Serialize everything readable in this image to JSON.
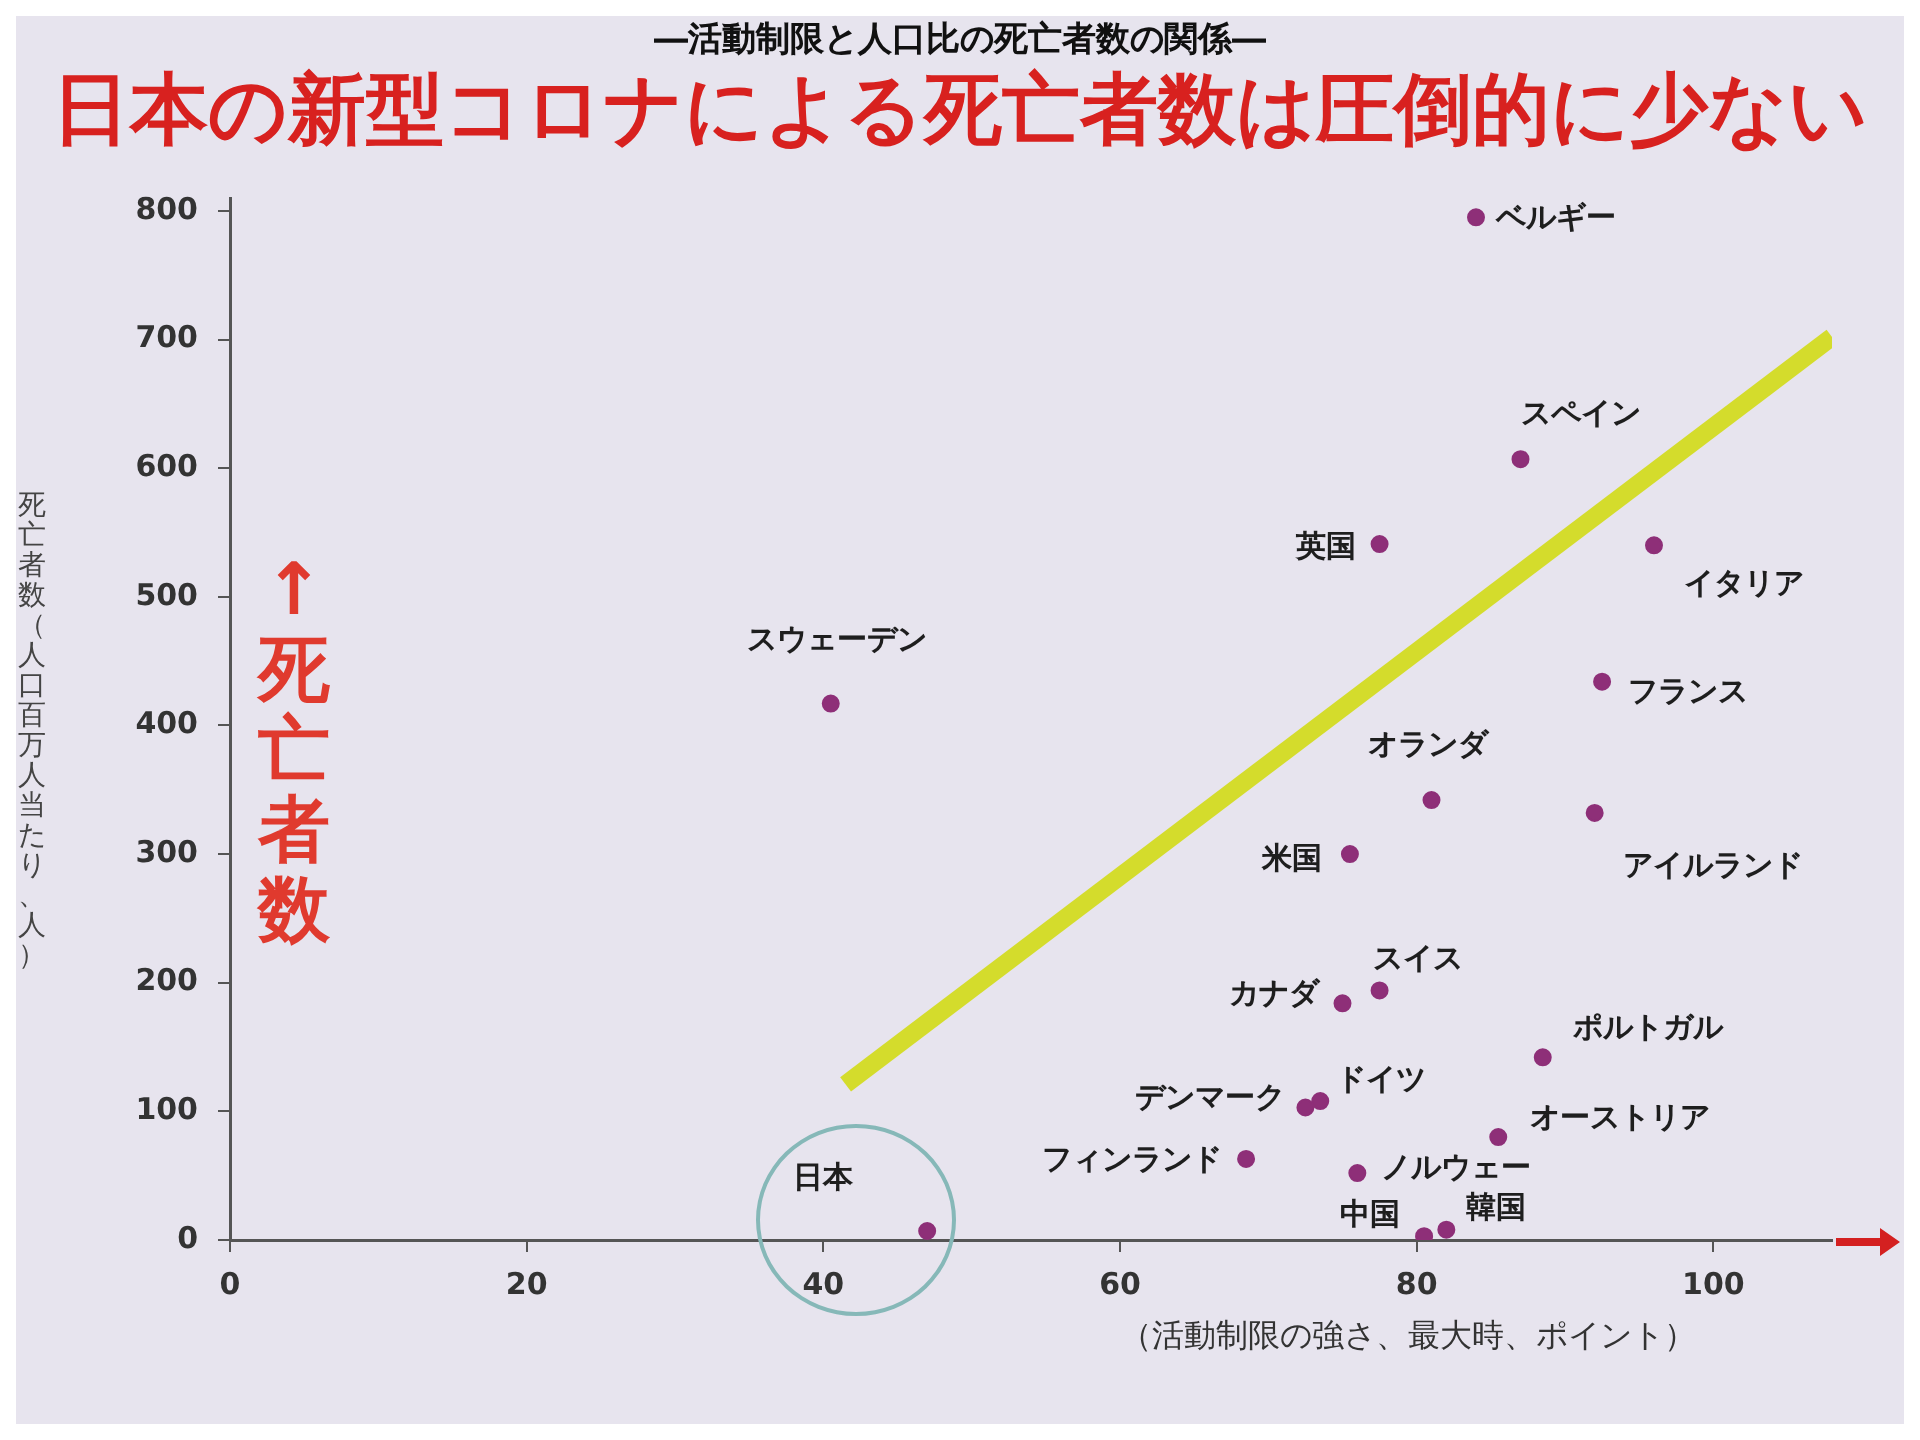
{
  "chart_data": {
    "type": "scatter",
    "title": "日本の新型コロナによる死亡者数は圧倒的に少ない",
    "subtitle": "―活動制限と人口比の死亡者数の関係―",
    "xlabel": "（活動制限の強さ、最大時、ポイント）",
    "ylabel": "死亡者数（人口百万人当たり、人）",
    "xlim": [
      0,
      108
    ],
    "xticks": [
      0,
      20,
      40,
      60,
      80,
      100
    ],
    "ylim": [
      0,
      810
    ],
    "yticks": [
      0,
      100,
      200,
      300,
      400,
      500,
      600,
      700,
      800
    ],
    "marker": "circle",
    "series": [
      {
        "type": "scatter",
        "color": "#8e2f78",
        "x": [
          47,
          40.5,
          84,
          87,
          77.5,
          96,
          92.5,
          81,
          92,
          75.5,
          77.5,
          75,
          88.5,
          73.5,
          72.5,
          85.5,
          68.5,
          76,
          80.5,
          82
        ],
        "values": [
          7,
          417,
          795,
          607,
          541,
          540,
          434,
          342,
          332,
          300,
          194,
          184,
          142,
          108,
          103,
          80,
          63,
          52,
          3,
          8
        ]
      },
      {
        "type": "line",
        "color": "#d4dc2c",
        "x": [
          41.5,
          108
        ],
        "values": [
          121,
          702
        ],
        "marker": "none"
      }
    ],
    "annotations": [
      "↑死亡者数",
      {
        "text": "日本",
        "x": 47,
        "y": 7
      },
      {
        "text": "スウェーデン",
        "x": 40.5,
        "y": 417
      },
      {
        "text": "ベルギー",
        "x": 84,
        "y": 795
      },
      {
        "text": "スペイン",
        "x": 87,
        "y": 607
      },
      {
        "text": "英国",
        "x": 77.5,
        "y": 541
      },
      {
        "text": "イタリア",
        "x": 96,
        "y": 540
      },
      {
        "text": "フランス",
        "x": 92.5,
        "y": 434
      },
      {
        "text": "オランダ",
        "x": 81,
        "y": 342
      },
      {
        "text": "アイルランド",
        "x": 92,
        "y": 332
      },
      {
        "text": "米国",
        "x": 75.5,
        "y": 300
      },
      {
        "text": "スイス",
        "x": 77.5,
        "y": 194
      },
      {
        "text": "カナダ",
        "x": 75,
        "y": 184
      },
      {
        "text": "ポルトガル",
        "x": 88.5,
        "y": 142
      },
      {
        "text": "ドイツ",
        "x": 73.5,
        "y": 108
      },
      {
        "text": "デンマーク",
        "x": 72.5,
        "y": 103
      },
      {
        "text": "オーストリア",
        "x": 85.5,
        "y": 80
      },
      {
        "text": "フィンランド",
        "x": 68.5,
        "y": 63
      },
      {
        "text": "ノルウェー",
        "x": 76,
        "y": 52
      },
      {
        "text": "中国",
        "x": 80.5,
        "y": 3
      },
      {
        "text": "韓国",
        "x": 82,
        "y": 8
      }
    ]
  }
}
